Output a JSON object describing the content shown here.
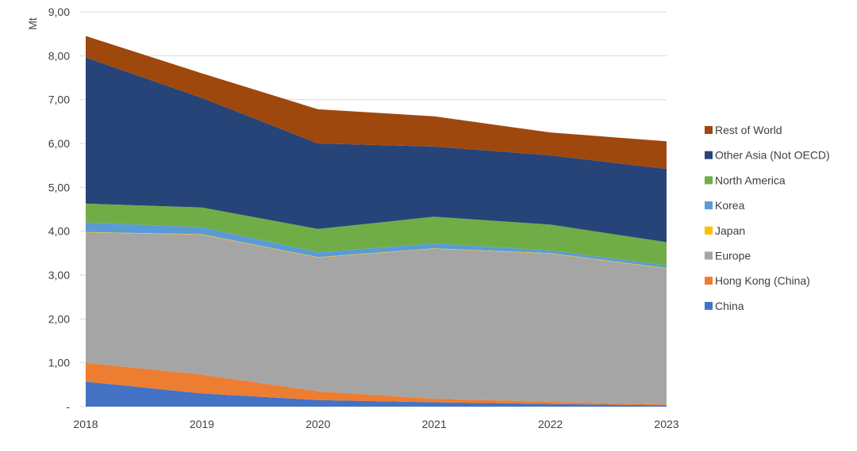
{
  "chart_data": {
    "type": "area",
    "stacked": true,
    "title": "",
    "xlabel": "",
    "ylabel": "Mt",
    "ylim": [
      0,
      9
    ],
    "y_ticks": [
      "-",
      "1,00",
      "2,00",
      "3,00",
      "4,00",
      "5,00",
      "6,00",
      "7,00",
      "8,00",
      "9,00"
    ],
    "x": [
      "2018",
      "2019",
      "2020",
      "2021",
      "2022",
      "2023"
    ],
    "grid": "horizontal",
    "legend_position": "right",
    "series": [
      {
        "name": "China",
        "color": "#4472C4",
        "values": [
          0.57,
          0.3,
          0.15,
          0.1,
          0.06,
          0.03
        ]
      },
      {
        "name": "Hong Kong (China)",
        "color": "#ED7D31",
        "values": [
          0.43,
          0.43,
          0.2,
          0.08,
          0.05,
          0.02
        ]
      },
      {
        "name": "Europe",
        "color": "#A5A5A5",
        "values": [
          2.97,
          3.19,
          3.05,
          3.42,
          3.38,
          3.1
        ]
      },
      {
        "name": "Japan",
        "color": "#FFC000",
        "values": [
          0.01,
          0.01,
          0.01,
          0.01,
          0.01,
          0.01
        ]
      },
      {
        "name": "Korea",
        "color": "#5B9BD5",
        "values": [
          0.22,
          0.16,
          0.11,
          0.11,
          0.06,
          0.06
        ]
      },
      {
        "name": "North America",
        "color": "#70AD47",
        "values": [
          0.43,
          0.45,
          0.53,
          0.61,
          0.59,
          0.53
        ]
      },
      {
        "name": "Other Asia (Not OECD)",
        "color": "#264478",
        "values": [
          3.33,
          2.5,
          1.95,
          1.6,
          1.58,
          1.67
        ]
      },
      {
        "name": "Rest of World",
        "color": "#9E480E",
        "values": [
          0.49,
          0.56,
          0.78,
          0.69,
          0.52,
          0.63
        ]
      }
    ],
    "legend_order": [
      "Rest of World",
      "Other Asia (Not OECD)",
      "North America",
      "Korea",
      "Japan",
      "Europe",
      "Hong Kong (China)",
      "China"
    ]
  }
}
